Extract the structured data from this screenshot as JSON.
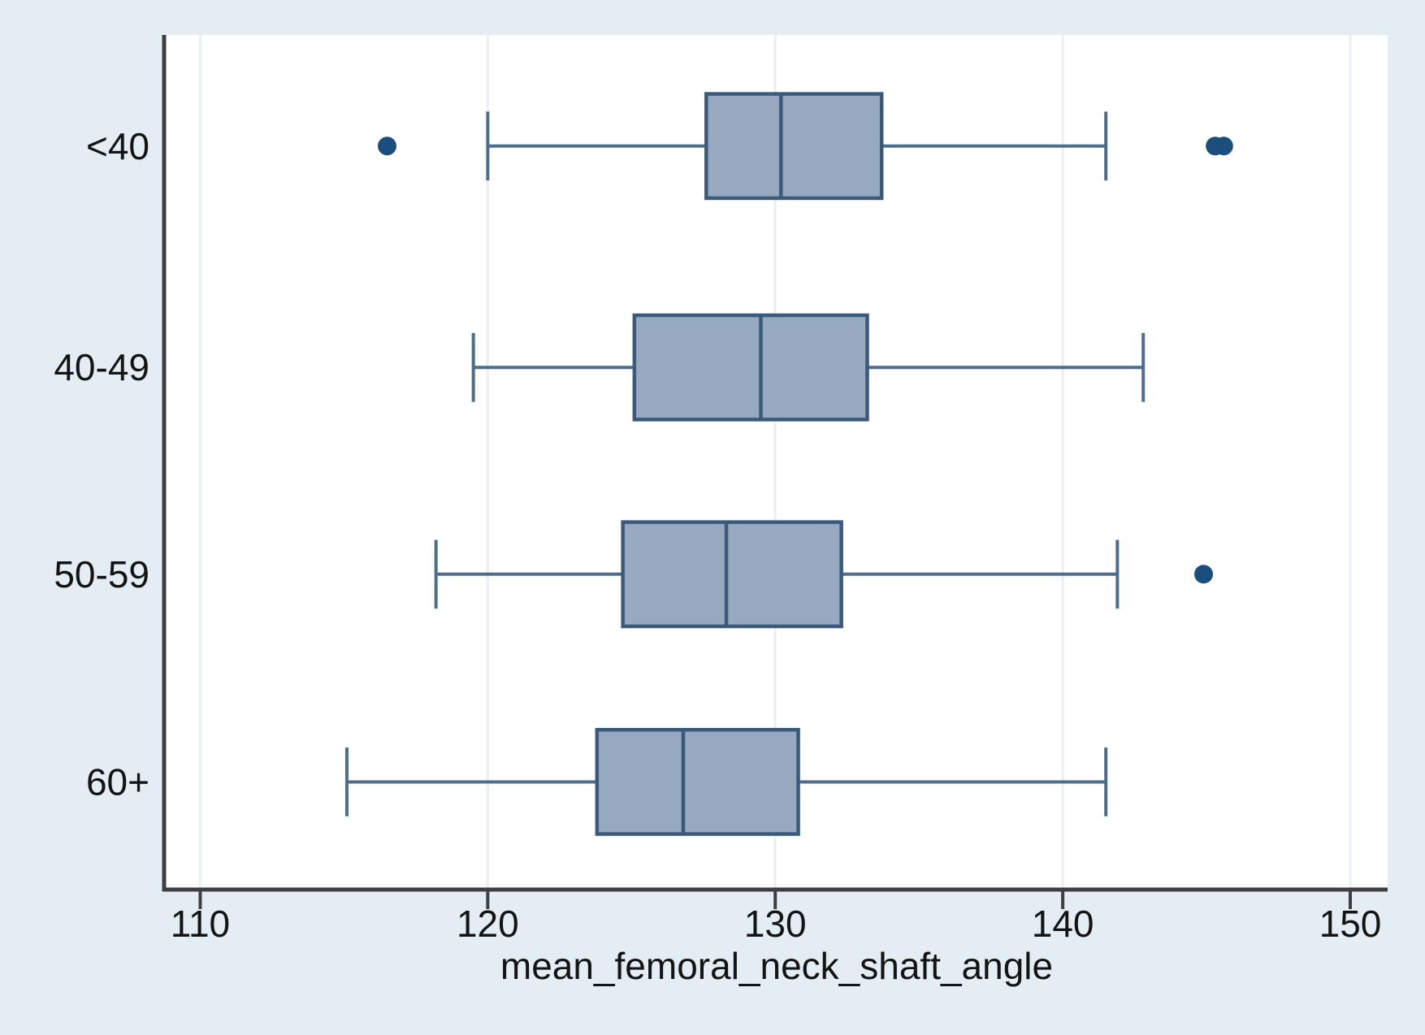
{
  "chart_data": {
    "type": "boxplot",
    "orientation": "horizontal",
    "title": "",
    "xlabel": "mean_femoral_neck_shaft_angle",
    "ylabel": "",
    "xlim": [
      108.8,
      151.3
    ],
    "x_ticks": [
      110,
      120,
      130,
      140,
      150
    ],
    "grid": "vertical-light",
    "categories": [
      "<40",
      "40-49",
      "50-59",
      "60+"
    ],
    "groups": [
      {
        "label": "<40",
        "whisker_low": 120.0,
        "q1": 127.6,
        "median": 130.2,
        "q3": 133.7,
        "whisker_high": 141.5,
        "outliers": [
          116.5,
          145.3,
          145.6
        ]
      },
      {
        "label": "40-49",
        "whisker_low": 119.5,
        "q1": 125.1,
        "median": 129.5,
        "q3": 133.2,
        "whisker_high": 142.8,
        "outliers": []
      },
      {
        "label": "50-59",
        "whisker_low": 118.2,
        "q1": 124.7,
        "median": 128.3,
        "q3": 132.3,
        "whisker_high": 141.9,
        "outliers": [
          144.9
        ]
      },
      {
        "label": "60+",
        "whisker_low": 115.1,
        "q1": 123.8,
        "median": 126.8,
        "q3": 130.8,
        "whisker_high": 141.5,
        "outliers": []
      }
    ],
    "layout": {
      "row_center_fracs": [
        0.13,
        0.389,
        0.631,
        0.874
      ],
      "box_height_frac": 0.122
    },
    "colors": {
      "page_bg": "#e3edf3",
      "plot_bg": "#ffffff",
      "grid": "#e9eff4",
      "axis": "#3f3f3f",
      "box_fill": "#96a9c0",
      "box_border": "#3b5a7b",
      "whisker": "#4d6d8d",
      "outlier": "#1c4e7d",
      "text": "#141414"
    }
  }
}
